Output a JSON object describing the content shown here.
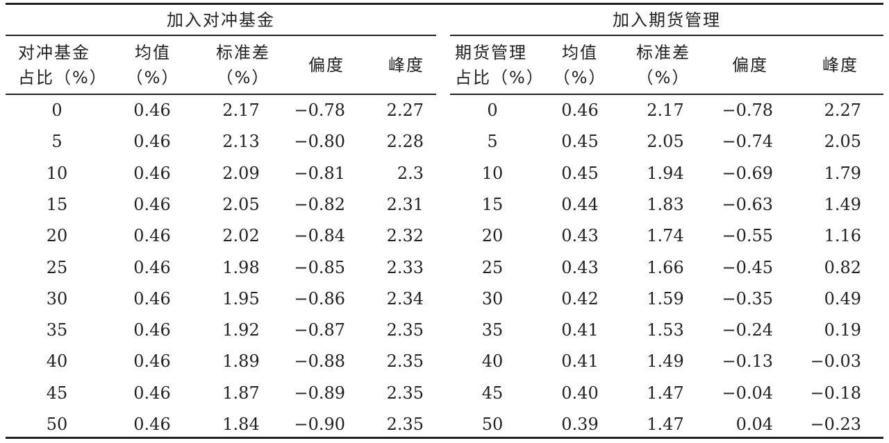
{
  "groups": {
    "left": "加入对冲基金",
    "right": "加入期货管理"
  },
  "headers": {
    "left": [
      {
        "l1": "对冲基金",
        "l2": "占比（%）"
      },
      {
        "l1": "均值",
        "l2": "（%）"
      },
      {
        "l1": "标准差",
        "l2": "（%）"
      },
      {
        "l1": "偏度",
        "l2": ""
      },
      {
        "l1": "峰度",
        "l2": ""
      }
    ],
    "right": [
      {
        "l1": "期货管理",
        "l2": "占比（%）"
      },
      {
        "l1": "均值",
        "l2": "（%）"
      },
      {
        "l1": "标准差",
        "l2": "（%）"
      },
      {
        "l1": "偏度",
        "l2": ""
      },
      {
        "l1": "峰度",
        "l2": ""
      }
    ]
  },
  "rows": [
    [
      "0",
      "0.46",
      "2.17",
      "−0.78",
      "2.27",
      "0",
      "0.46",
      "2.17",
      "−0.78",
      "2.27"
    ],
    [
      "5",
      "0.46",
      "2.13",
      "−0.80",
      "2.28",
      "5",
      "0.45",
      "2.05",
      "−0.74",
      "2.05"
    ],
    [
      "10",
      "0.46",
      "2.09",
      "−0.81",
      "2.3",
      "10",
      "0.45",
      "1.94",
      "−0.69",
      "1.79"
    ],
    [
      "15",
      "0.46",
      "2.05",
      "−0.82",
      "2.31",
      "15",
      "0.44",
      "1.83",
      "−0.63",
      "1.49"
    ],
    [
      "20",
      "0.46",
      "2.02",
      "−0.84",
      "2.32",
      "20",
      "0.43",
      "1.74",
      "−0.55",
      "1.16"
    ],
    [
      "25",
      "0.46",
      "1.98",
      "−0.85",
      "2.33",
      "25",
      "0.43",
      "1.66",
      "−0.45",
      "0.82"
    ],
    [
      "30",
      "0.46",
      "1.95",
      "−0.86",
      "2.34",
      "30",
      "0.42",
      "1.59",
      "−0.35",
      "0.49"
    ],
    [
      "35",
      "0.46",
      "1.92",
      "−0.87",
      "2.35",
      "35",
      "0.41",
      "1.53",
      "−0.24",
      "0.19"
    ],
    [
      "40",
      "0.46",
      "1.89",
      "−0.88",
      "2.35",
      "40",
      "0.41",
      "1.49",
      "−0.13",
      "−0.03"
    ],
    [
      "45",
      "0.46",
      "1.87",
      "−0.89",
      "2.35",
      "45",
      "0.40",
      "1.47",
      "−0.04",
      "−0.18"
    ],
    [
      "50",
      "0.46",
      "1.84",
      "−0.90",
      "2.35",
      "50",
      "0.39",
      "1.47",
      "0.04",
      "−0.23"
    ]
  ]
}
